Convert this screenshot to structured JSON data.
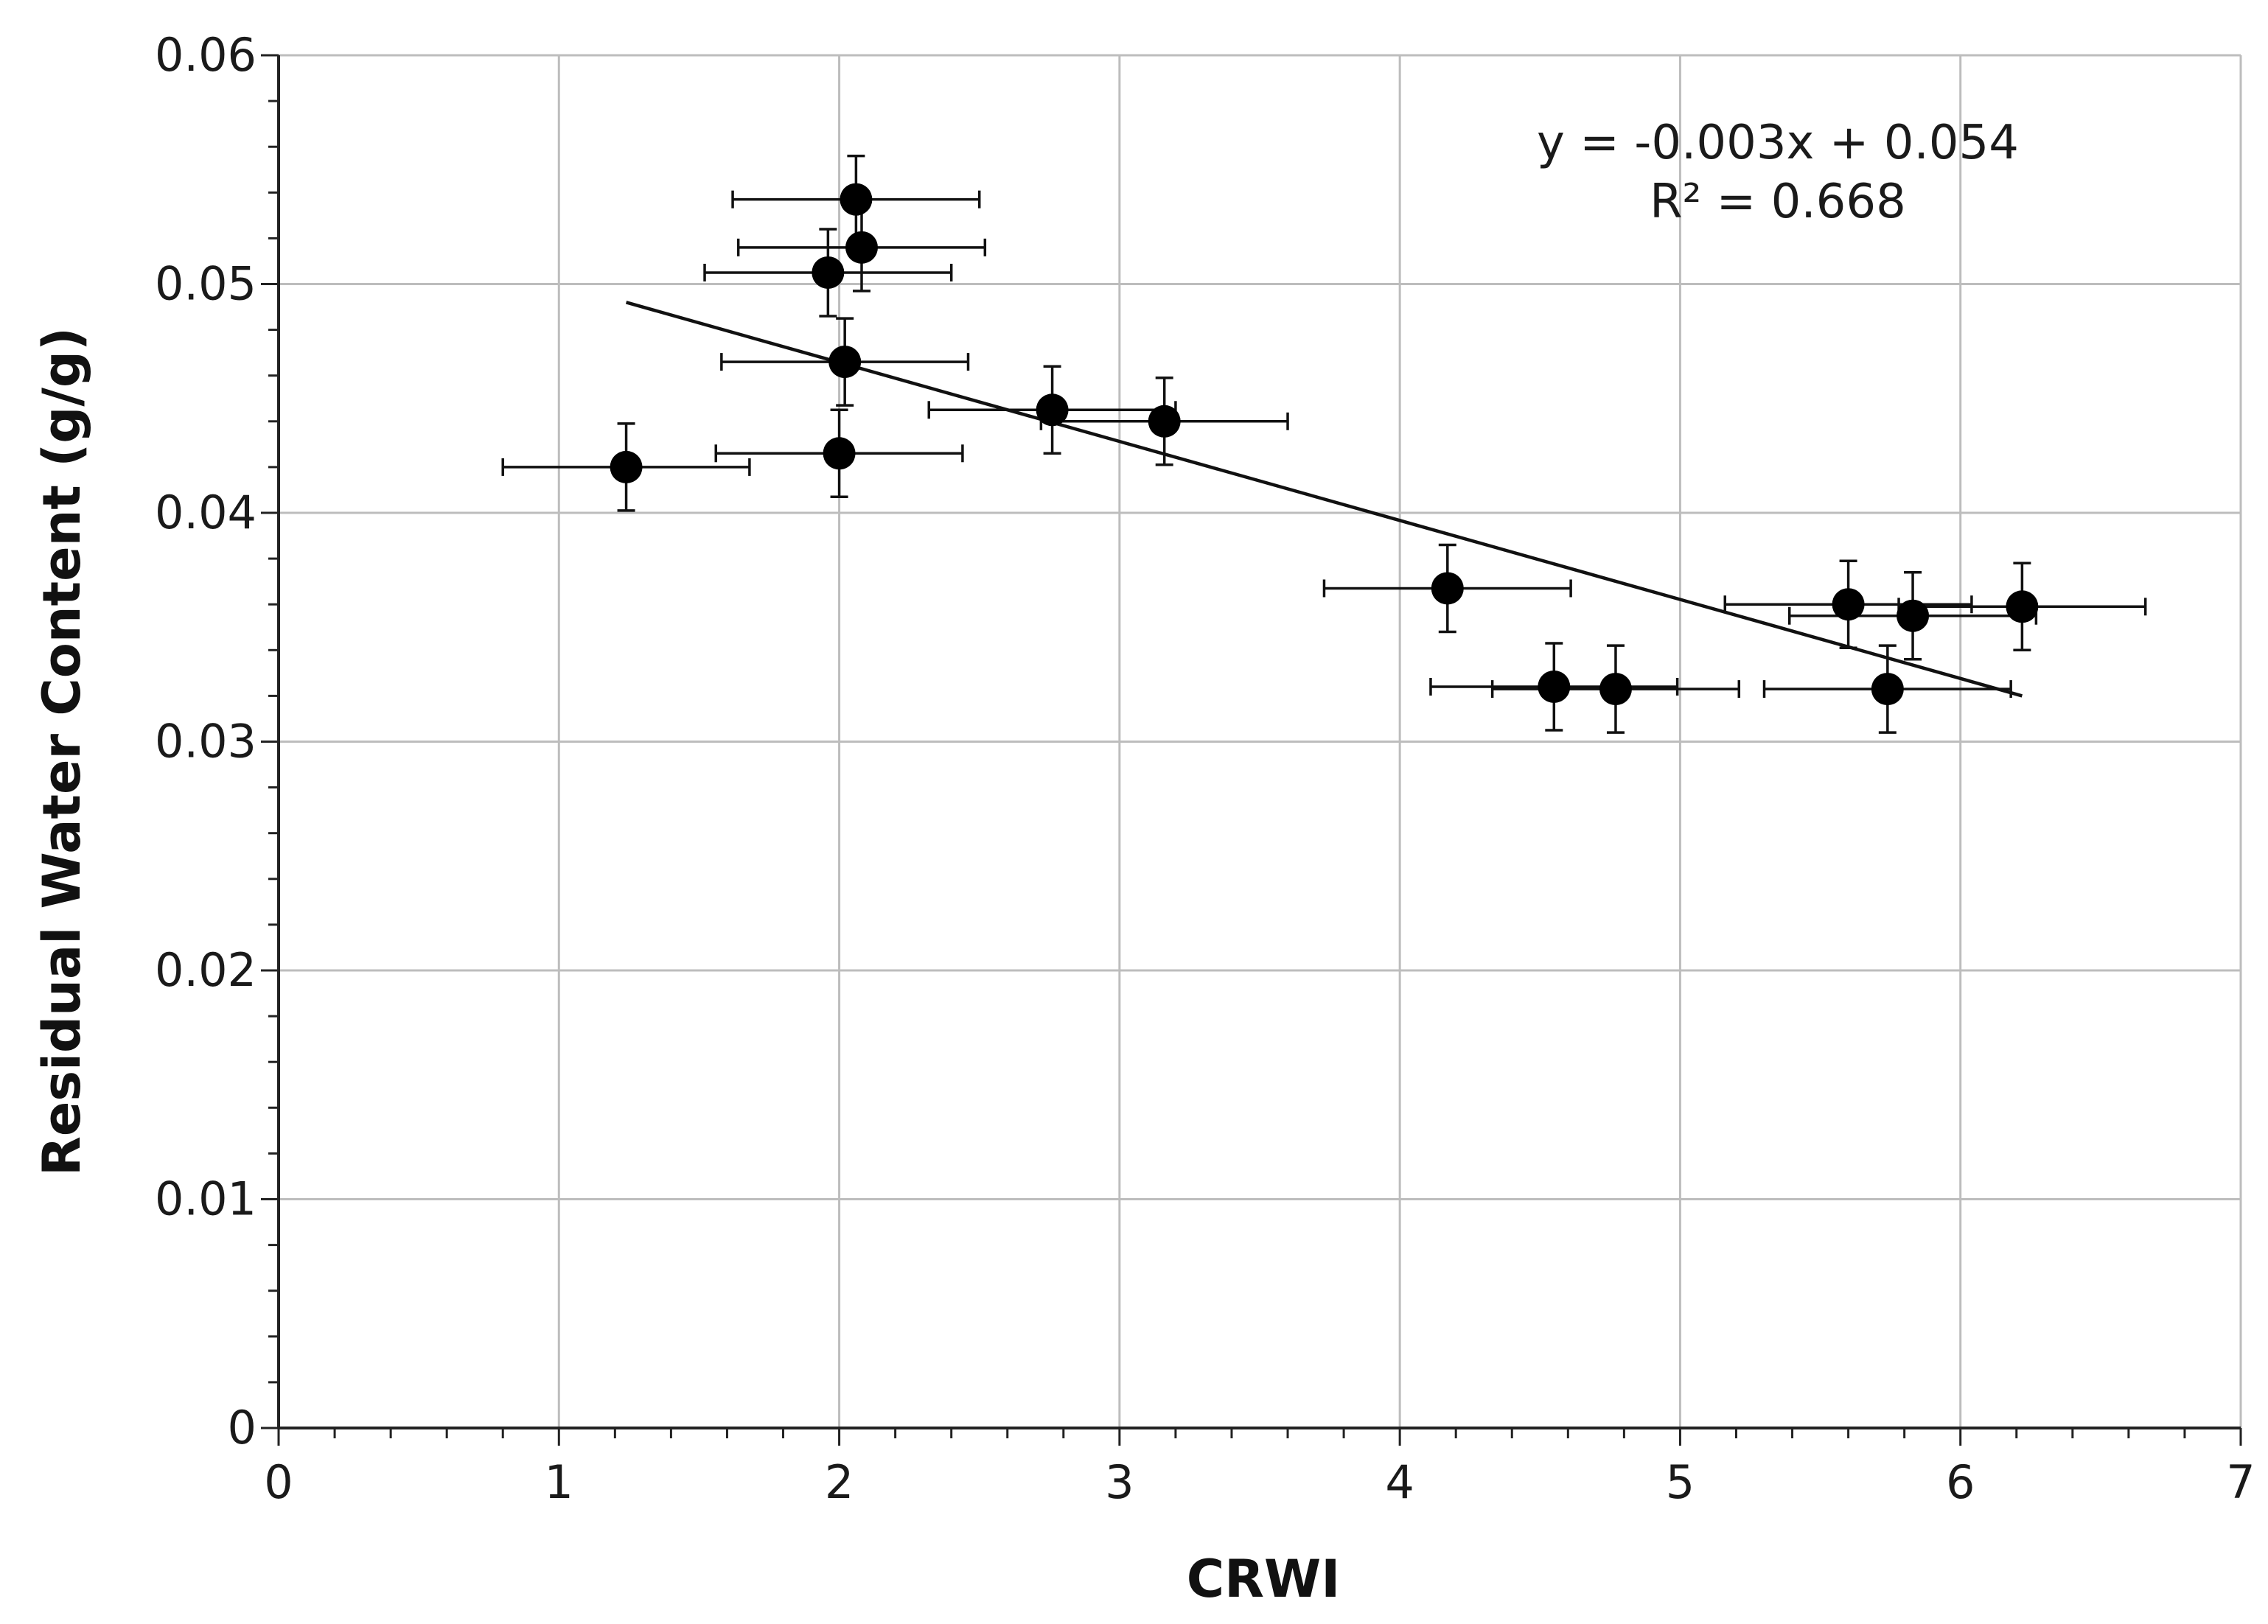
{
  "chart_data": {
    "type": "scatter",
    "title": "",
    "xlabel": "CRWI",
    "ylabel": "Residual Water Content (g/g)",
    "xlim": [
      0,
      7
    ],
    "ylim": [
      0,
      0.06
    ],
    "x_ticks": [
      0,
      1,
      2,
      3,
      4,
      5,
      6,
      7
    ],
    "x_tick_labels": [
      "0",
      "1",
      "2",
      "3",
      "4",
      "5",
      "6",
      "7"
    ],
    "y_ticks": [
      0,
      0.01,
      0.02,
      0.03,
      0.04,
      0.05,
      0.06
    ],
    "y_tick_labels": [
      "0",
      "0.01",
      "0.02",
      "0.03",
      "0.04",
      "0.05",
      "0.06"
    ],
    "grid": true,
    "legend": "none",
    "series": [
      {
        "name": "samples",
        "marker": "circle",
        "color": "#000000",
        "points": [
          {
            "x": 1.24,
            "y": 0.042,
            "xerr": 0.44,
            "yerr": 0.0019
          },
          {
            "x": 2.0,
            "y": 0.0426,
            "xerr": 0.44,
            "yerr": 0.0019
          },
          {
            "x": 2.02,
            "y": 0.0466,
            "xerr": 0.44,
            "yerr": 0.0019
          },
          {
            "x": 1.96,
            "y": 0.0505,
            "xerr": 0.44,
            "yerr": 0.0019
          },
          {
            "x": 2.06,
            "y": 0.0537,
            "xerr": 0.44,
            "yerr": 0.0019
          },
          {
            "x": 2.08,
            "y": 0.0516,
            "xerr": 0.44,
            "yerr": 0.0019
          },
          {
            "x": 2.76,
            "y": 0.0445,
            "xerr": 0.44,
            "yerr": 0.0019
          },
          {
            "x": 3.16,
            "y": 0.044,
            "xerr": 0.44,
            "yerr": 0.0019
          },
          {
            "x": 4.17,
            "y": 0.0367,
            "xerr": 0.44,
            "yerr": 0.0019
          },
          {
            "x": 4.55,
            "y": 0.0324,
            "xerr": 0.44,
            "yerr": 0.0019
          },
          {
            "x": 4.77,
            "y": 0.0323,
            "xerr": 0.44,
            "yerr": 0.0019
          },
          {
            "x": 5.6,
            "y": 0.036,
            "xerr": 0.44,
            "yerr": 0.0019
          },
          {
            "x": 5.83,
            "y": 0.0355,
            "xerr": 0.44,
            "yerr": 0.0019
          },
          {
            "x": 6.22,
            "y": 0.0359,
            "xerr": 0.44,
            "yerr": 0.0019
          },
          {
            "x": 5.74,
            "y": 0.0323,
            "xerr": 0.44,
            "yerr": 0.0019
          }
        ]
      }
    ],
    "trendline": {
      "type": "linear",
      "x_start": 1.24,
      "y_start": 0.0492,
      "x_end": 6.22,
      "y_end": 0.032,
      "equation": "y = -0.003x + 0.054",
      "r_squared": "R² = 0.668"
    }
  }
}
